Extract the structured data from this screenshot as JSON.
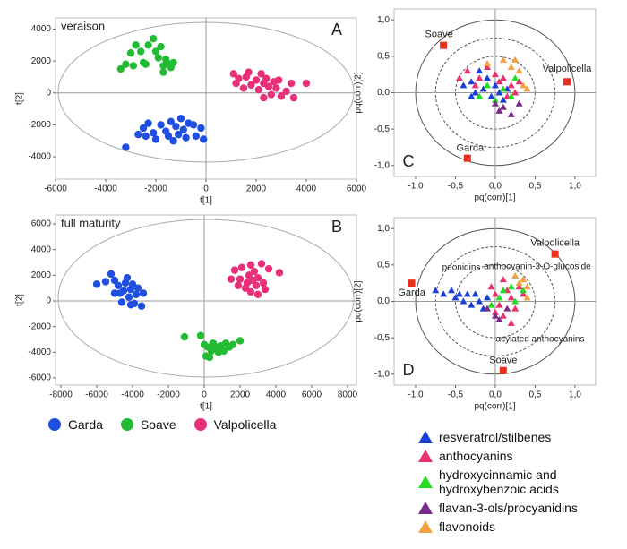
{
  "chart_data": [
    {
      "type": "scatter",
      "title": "veraison",
      "label": "A",
      "x_label": "t[1]",
      "y_label": "t[2]",
      "xlim": [
        -6000,
        6000
      ],
      "ylim": [
        -5400,
        4700
      ],
      "xticks": [
        -6000,
        -4000,
        -2000,
        0,
        2000,
        4000,
        6000
      ],
      "yticks": [
        -4000,
        -2000,
        0,
        2000,
        4000
      ],
      "series": [
        {
          "name": "Garda",
          "color": "#1f4fe0",
          "marker": "circle",
          "x": [
            -3200,
            -2700,
            -2500,
            -2300,
            -2100,
            -2000,
            -1800,
            -1600,
            -1500,
            -1400,
            -1200,
            -1100,
            -1000,
            -900,
            -800,
            -700,
            -500,
            -400,
            -200,
            -100,
            -1300,
            -2400
          ],
          "values": [
            -3400,
            -2600,
            -2200,
            -1900,
            -2500,
            -2900,
            -2000,
            -2400,
            -2700,
            -1800,
            -2100,
            -2600,
            -1600,
            -2300,
            -2800,
            -1900,
            -2000,
            -2700,
            -2200,
            -2900,
            -3000,
            -2700
          ]
        },
        {
          "name": "Soave",
          "color": "#22bb33",
          "marker": "circle",
          "x": [
            -3400,
            -3200,
            -3000,
            -2800,
            -2600,
            -2500,
            -2400,
            -2100,
            -2000,
            -1900,
            -1800,
            -1700,
            -1600,
            -1500,
            -1400,
            -1300,
            -2900,
            -2300,
            -1700
          ],
          "values": [
            1500,
            1800,
            2500,
            3000,
            2600,
            1900,
            1800,
            3400,
            2600,
            2200,
            2900,
            1700,
            2100,
            1800,
            1600,
            1900,
            1700,
            3000,
            1300
          ]
        },
        {
          "name": "Valpolicella",
          "color": "#e8307a",
          "marker": "circle",
          "x": [
            1100,
            1200,
            1300,
            1500,
            1600,
            1700,
            1800,
            2000,
            2100,
            2200,
            2300,
            2400,
            2500,
            2600,
            2700,
            2800,
            2900,
            3000,
            3200,
            3400,
            3500,
            4000,
            2300
          ],
          "values": [
            1200,
            600,
            900,
            300,
            1000,
            1300,
            500,
            800,
            200,
            1200,
            600,
            900,
            400,
            -100,
            700,
            300,
            800,
            -200,
            100,
            600,
            -300,
            600,
            -300
          ]
        }
      ]
    },
    {
      "type": "scatter",
      "title": "full maturity",
      "label": "B",
      "x_label": "t[1]",
      "y_label": "t[2]",
      "xlim": [
        -8300,
        8500
      ],
      "ylim": [
        -6560,
        6700
      ],
      "xticks": [
        -8000,
        -6000,
        -4000,
        -2000,
        0,
        2000,
        4000,
        6000,
        8000
      ],
      "yticks": [
        -6000,
        -4000,
        -2000,
        0,
        2000,
        4000,
        6000
      ],
      "series": [
        {
          "color": "#1f4fe0",
          "marker": "circle",
          "x": [
            -6000,
            -5500,
            -5200,
            -5000,
            -4800,
            -4700,
            -4600,
            -4500,
            -4300,
            -4200,
            -4100,
            -4000,
            -3900,
            -3800,
            -3700,
            -3500,
            -3400,
            -4400,
            -5000,
            -4100
          ],
          "values": [
            1300,
            1500,
            2100,
            1600,
            1200,
            600,
            -100,
            800,
            1800,
            300,
            900,
            1300,
            -200,
            500,
            1000,
            -400,
            600,
            1400,
            600,
            -300
          ]
        },
        {
          "color": "#22bb33",
          "marker": "circle",
          "x": [
            -1100,
            -200,
            0,
            100,
            200,
            400,
            500,
            600,
            800,
            900,
            1100,
            1200,
            1400,
            1600,
            2000,
            300
          ],
          "values": [
            -2800,
            -2700,
            -3400,
            -4300,
            -3600,
            -3900,
            -3300,
            -3700,
            -4000,
            -3500,
            -3900,
            -3300,
            -3600,
            -3400,
            -3100,
            -4400
          ]
        },
        {
          "color": "#e8307a",
          "marker": "circle",
          "x": [
            1500,
            1700,
            1900,
            2000,
            2100,
            2300,
            2400,
            2500,
            2600,
            2700,
            2800,
            2900,
            3000,
            3200,
            3300,
            3400,
            3600,
            4200,
            2600,
            3000
          ],
          "values": [
            1700,
            2400,
            1200,
            1700,
            2600,
            1000,
            1400,
            2000,
            700,
            1600,
            2300,
            1200,
            1800,
            2900,
            1400,
            900,
            2500,
            2200,
            2800,
            500
          ]
        }
      ]
    },
    {
      "type": "loadings",
      "label": "C",
      "x_label": "pq(corr)[1]",
      "y_label": "pq(corr)[2]",
      "xlim": [
        -1.27,
        1.26
      ],
      "ylim": [
        -1.15,
        1.15
      ],
      "xticks": [
        {
          "value": -1,
          "label": "-1,0"
        },
        {
          "value": -0.5,
          "label": "-0,5"
        },
        {
          "value": 0,
          "label": "0,0"
        },
        {
          "value": 0.5,
          "label": "0,5"
        },
        {
          "value": 1,
          "label": "1,0"
        }
      ],
      "yticks": [
        {
          "value": -1,
          "label": "-1,0"
        },
        {
          "value": -0.5,
          "label": "-0,5"
        },
        {
          "value": 0,
          "label": "0,0"
        },
        {
          "value": 0.5,
          "label": "0,5"
        },
        {
          "value": 1,
          "label": "1,0"
        }
      ],
      "series": [
        {
          "name": "resveratrol/stilbenes",
          "color": "#1a3fd6",
          "marker": "triangle",
          "x": [
            -0.4,
            -0.3,
            -0.25,
            -0.2,
            -0.15,
            -0.1,
            -0.05,
            0,
            0.05,
            0.1,
            0.15,
            -0.3
          ],
          "values": [
            0.1,
            0.15,
            0,
            0.3,
            0.05,
            0.2,
            -0.05,
            0.1,
            0,
            -0.1,
            0.05,
            -0.05
          ]
        },
        {
          "name": "anthocyanins",
          "color": "#e8306e",
          "marker": "triangle",
          "x": [
            -0.45,
            -0.35,
            -0.25,
            -0.1,
            0,
            0.05,
            0.1,
            0.2,
            0.25,
            0.3,
            -0.2,
            0.15
          ],
          "values": [
            0.2,
            0.3,
            0.1,
            0.35,
            0.25,
            0.15,
            0.2,
            0.1,
            0,
            0.15,
            0.2,
            -0.05
          ]
        },
        {
          "name": "hydroxycinnamic and hydroxybenzoic acids",
          "color": "#22dd22",
          "marker": "triangle",
          "x": [
            -0.1,
            0,
            0.1,
            0.2,
            -0.2,
            0.25
          ],
          "values": [
            0.1,
            -0.1,
            0.05,
            -0.05,
            -0.05,
            0.2
          ]
        },
        {
          "name": "flavan-3-ols/procyanidins",
          "color": "#7a2a8a",
          "marker": "triangle",
          "x": [
            0,
            0.1,
            0.2,
            0.05,
            0.3
          ],
          "values": [
            -0.15,
            -0.2,
            -0.3,
            -0.25,
            -0.15
          ]
        },
        {
          "name": "flavonoids",
          "color": "#f5a040",
          "marker": "triangle",
          "x": [
            0.1,
            0.2,
            0.3,
            0.35,
            0.4,
            0.25,
            -0.1
          ],
          "values": [
            0.45,
            0.35,
            0.3,
            0.1,
            0.05,
            0.45,
            0.4
          ]
        }
      ],
      "samples": {
        "color": "#e8301c",
        "labels": [
          "Soave",
          "Valpolicella",
          "Garda"
        ],
        "x": [
          -0.65,
          0.9,
          -0.35
        ],
        "values": [
          0.65,
          0.15,
          -0.9
        ]
      }
    },
    {
      "type": "loadings",
      "label": "D",
      "x_label": "pq(corr)[1]",
      "y_label": "pq(corr)[2]",
      "xlim": [
        -1.27,
        1.26
      ],
      "ylim": [
        -1.15,
        1.15
      ],
      "xticks": [
        {
          "value": -1,
          "label": "-1,0"
        },
        {
          "value": -0.5,
          "label": "-0,5"
        },
        {
          "value": 0,
          "label": "0,0"
        },
        {
          "value": 0.5,
          "label": "0,5"
        },
        {
          "value": 1,
          "label": "1,0"
        }
      ],
      "yticks": [
        {
          "value": -1,
          "label": "-1,0"
        },
        {
          "value": -0.5,
          "label": "-0,5"
        },
        {
          "value": 0,
          "label": "0,0"
        },
        {
          "value": 0.5,
          "label": "0,5"
        },
        {
          "value": 1,
          "label": "1,0"
        }
      ],
      "series": [
        {
          "color": "#1a3fd6",
          "marker": "triangle",
          "x": [
            -0.75,
            -0.65,
            -0.55,
            -0.5,
            -0.45,
            -0.4,
            -0.35,
            -0.3,
            -0.25,
            -0.2,
            -0.15,
            -0.1
          ],
          "values": [
            0.15,
            0.1,
            0.15,
            0.05,
            0.1,
            0,
            0.1,
            -0.05,
            0.1,
            0,
            -0.1,
            0.05
          ]
        },
        {
          "color": "#e8306e",
          "marker": "triangle",
          "x": [
            -0.05,
            0,
            0.05,
            0.1,
            0.15,
            0.2,
            0.25,
            0.3,
            0.35,
            0.1,
            0.2,
            0
          ],
          "values": [
            0.2,
            0.1,
            -0.05,
            0.3,
            0.15,
            0.05,
            -0.1,
            0.2,
            0.1,
            -0.2,
            -0.3,
            -0.15
          ]
        },
        {
          "color": "#22dd22",
          "marker": "triangle",
          "x": [
            0.05,
            0.1,
            0.2,
            0.25,
            0.35,
            -0.05
          ],
          "values": [
            0.05,
            0.15,
            0.2,
            0,
            0.15,
            -0.05
          ]
        },
        {
          "color": "#7a2a8a",
          "marker": "triangle",
          "x": [
            -0.1,
            0,
            0.05,
            0.15
          ],
          "values": [
            -0.1,
            -0.2,
            -0.25,
            -0.1
          ]
        },
        {
          "color": "#f5a040",
          "marker": "triangle",
          "x": [
            0.3,
            0.35,
            0.4,
            0.25,
            0.4
          ],
          "values": [
            0.25,
            0.3,
            0.2,
            0.35,
            0.05
          ]
        }
      ],
      "samples": {
        "color": "#e8301c",
        "labels": [
          "Garda",
          "Valpolicella",
          "Soave"
        ],
        "x": [
          -1.05,
          0.75,
          0.1
        ],
        "values": [
          0.25,
          0.65,
          -0.95
        ]
      },
      "annotations": [
        "peonidins",
        "anthocyanin-3-O-glucoside",
        "acylated anthocyanins"
      ]
    }
  ]
}
